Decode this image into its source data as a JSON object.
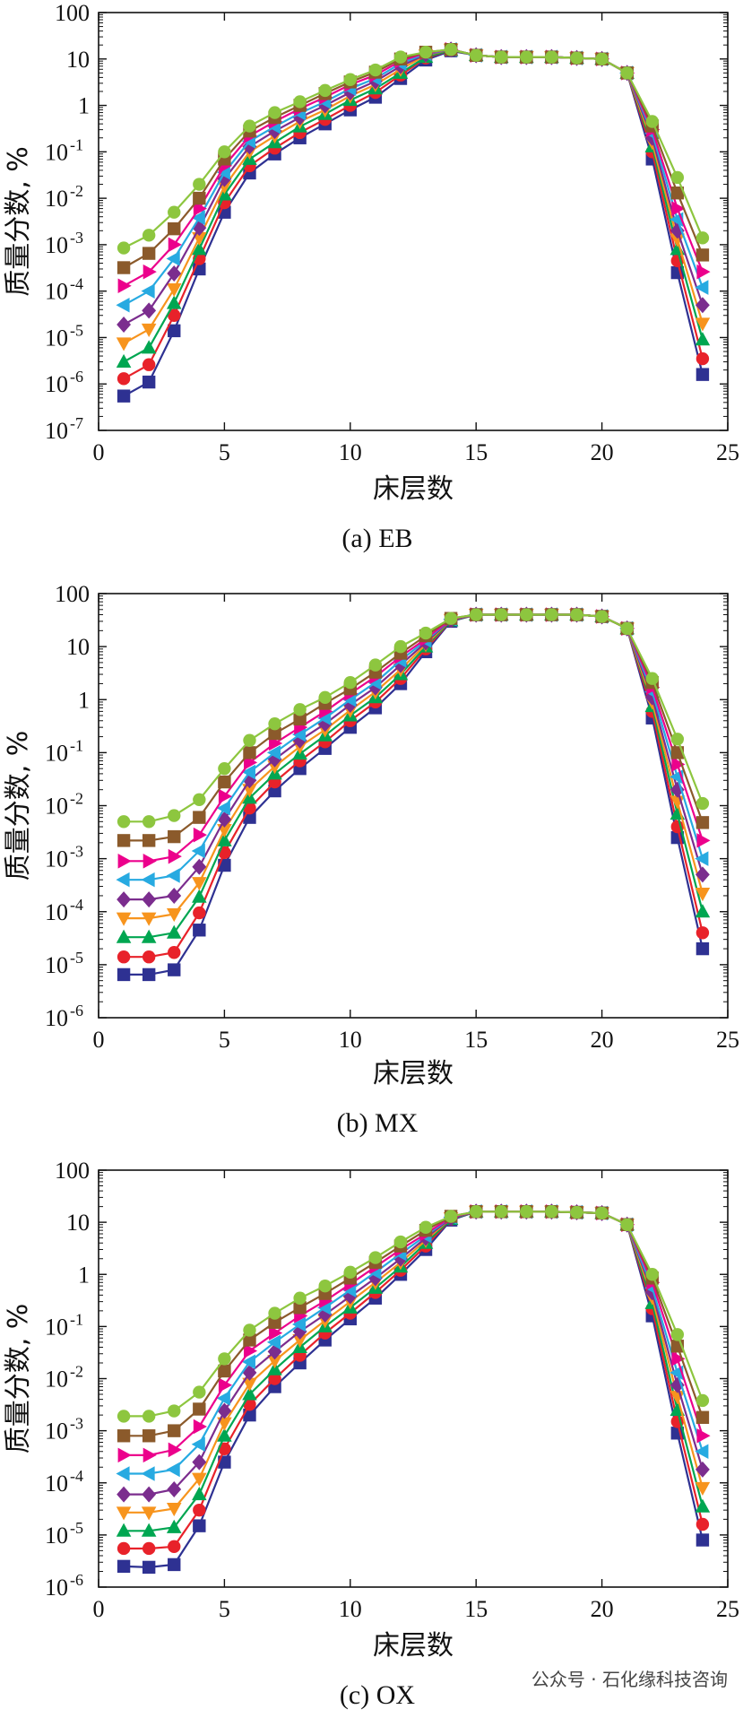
{
  "chart_data": [
    {
      "type": "line",
      "caption": "(a) EB",
      "xlabel": "床层数",
      "ylabel": "质量分数, %",
      "xlim": [
        0,
        25
      ],
      "xticks": [
        0,
        5,
        10,
        15,
        20,
        25
      ],
      "yscale": "log",
      "ylim_exp": [
        -7,
        2
      ],
      "yticks": [
        {
          "exp": -7,
          "label": "10",
          "sup": "-7"
        },
        {
          "exp": -6,
          "label": "10",
          "sup": "-6"
        },
        {
          "exp": -5,
          "label": "10",
          "sup": "-5"
        },
        {
          "exp": -4,
          "label": "10",
          "sup": "-4"
        },
        {
          "exp": -3,
          "label": "10",
          "sup": "-3"
        },
        {
          "exp": -2,
          "label": "10",
          "sup": "-2"
        },
        {
          "exp": -1,
          "label": "10",
          "sup": "-1"
        },
        {
          "exp": 0,
          "label": "1",
          "sup": ""
        },
        {
          "exp": 1,
          "label": "10",
          "sup": ""
        },
        {
          "exp": 2,
          "label": "100",
          "sup": ""
        }
      ],
      "x": [
        1,
        2,
        3,
        4,
        5,
        6,
        7,
        8,
        9,
        10,
        11,
        12,
        13,
        14,
        15,
        16,
        17,
        18,
        19,
        20,
        21,
        22,
        23,
        24
      ],
      "series": [
        {
          "color": "#2e3192",
          "marker": "square",
          "values": [
            5.5e-07,
            1.1e-06,
            1.4e-05,
            0.0003,
            0.005,
            0.035,
            0.09,
            0.2,
            0.4,
            0.8,
            1.5,
            3.8,
            9.5,
            15,
            12,
            11,
            11,
            11,
            10.5,
            10,
            5,
            0.07,
            0.00025,
            1.6e-06
          ]
        },
        {
          "color": "#e8222a",
          "marker": "circle",
          "values": [
            1.3e-06,
            2.6e-06,
            3e-05,
            0.0005,
            0.008,
            0.05,
            0.12,
            0.26,
            0.5,
            1,
            1.9,
            4.5,
            10.5,
            15.5,
            12,
            11,
            11,
            11,
            10.5,
            10,
            5,
            0.1,
            0.00045,
            3.5e-06
          ]
        },
        {
          "color": "#00a651",
          "marker": "triangle-up",
          "values": [
            3e-06,
            6e-06,
            5.5e-05,
            0.0008,
            0.012,
            0.07,
            0.16,
            0.35,
            0.65,
            1.3,
            2.3,
            5,
            11,
            15.5,
            12,
            11,
            11,
            11,
            10.5,
            10,
            5,
            0.13,
            0.0008,
            9e-06
          ]
        },
        {
          "color": "#f7941d",
          "marker": "triangle-down",
          "values": [
            7.5e-06,
            1.5e-05,
            0.00011,
            0.0014,
            0.018,
            0.1,
            0.22,
            0.45,
            0.8,
            1.6,
            2.8,
            6,
            12,
            16,
            12,
            11,
            11,
            11,
            10.5,
            10,
            5,
            0.16,
            0.0013,
            2e-05
          ]
        },
        {
          "color": "#7b2d8e",
          "marker": "diamond",
          "values": [
            1.9e-05,
            3.8e-05,
            0.00024,
            0.0023,
            0.026,
            0.13,
            0.28,
            0.55,
            1,
            1.9,
            3.3,
            7,
            12.5,
            16,
            12,
            11,
            11,
            11,
            10.5,
            10,
            5,
            0.2,
            0.002,
            5e-05
          ]
        },
        {
          "color": "#27aae1",
          "marker": "triangle-left",
          "values": [
            5e-05,
            0.0001,
            0.0005,
            0.0038,
            0.036,
            0.17,
            0.35,
            0.68,
            1.2,
            2.3,
            3.8,
            8,
            13,
            16,
            12,
            11,
            11,
            11,
            10.5,
            10,
            5,
            0.25,
            0.0035,
            0.00012
          ]
        },
        {
          "color": "#ec008c",
          "marker": "triangle-right",
          "values": [
            0.00013,
            0.00026,
            0.001,
            0.006,
            0.05,
            0.22,
            0.45,
            0.85,
            1.5,
            2.8,
            4.5,
            9,
            13.5,
            16,
            12,
            11,
            11,
            11,
            10.5,
            10,
            5,
            0.3,
            0.006,
            0.00026
          ]
        },
        {
          "color": "#8b5a2b",
          "marker": "square",
          "values": [
            0.00032,
            0.00065,
            0.0022,
            0.01,
            0.07,
            0.28,
            0.55,
            1,
            1.8,
            3.2,
            5.2,
            10,
            14,
            16,
            12,
            11,
            11,
            11,
            10.5,
            10,
            5,
            0.36,
            0.013,
            0.0006
          ]
        },
        {
          "color": "#8dc63f",
          "marker": "circle",
          "values": [
            0.00085,
            0.0016,
            0.005,
            0.02,
            0.1,
            0.36,
            0.7,
            1.2,
            2.1,
            3.6,
            5.8,
            11,
            14,
            16,
            12,
            11,
            11,
            11,
            10.5,
            10,
            5,
            0.45,
            0.028,
            0.0014
          ]
        }
      ]
    },
    {
      "type": "line",
      "caption": "(b) MX",
      "xlabel": "床层数",
      "ylabel": "质量分数, %",
      "xlim": [
        0,
        25
      ],
      "xticks": [
        0,
        5,
        10,
        15,
        20,
        25
      ],
      "yscale": "log",
      "ylim_exp": [
        -6,
        2
      ],
      "yticks": [
        {
          "exp": -6,
          "label": "10",
          "sup": "-6"
        },
        {
          "exp": -5,
          "label": "10",
          "sup": "-5"
        },
        {
          "exp": -4,
          "label": "10",
          "sup": "-4"
        },
        {
          "exp": -3,
          "label": "10",
          "sup": "-3"
        },
        {
          "exp": -2,
          "label": "10",
          "sup": "-2"
        },
        {
          "exp": -1,
          "label": "10",
          "sup": "-1"
        },
        {
          "exp": 0,
          "label": "1",
          "sup": ""
        },
        {
          "exp": 1,
          "label": "10",
          "sup": ""
        },
        {
          "exp": 2,
          "label": "100",
          "sup": ""
        }
      ],
      "x": [
        1,
        2,
        3,
        4,
        5,
        6,
        7,
        8,
        9,
        10,
        11,
        12,
        13,
        14,
        15,
        16,
        17,
        18,
        19,
        20,
        21,
        22,
        23,
        24
      ],
      "series": [
        {
          "color": "#2e3192",
          "marker": "square",
          "values": [
            6.5e-06,
            6.5e-06,
            8e-06,
            4.5e-05,
            0.00075,
            0.006,
            0.019,
            0.05,
            0.12,
            0.3,
            0.7,
            2,
            8,
            30,
            40,
            40,
            40,
            40,
            40,
            37,
            22,
            0.45,
            0.0025,
            2e-05
          ]
        },
        {
          "color": "#e8222a",
          "marker": "circle",
          "values": [
            1.4e-05,
            1.4e-05,
            1.7e-05,
            9.5e-05,
            0.0013,
            0.009,
            0.028,
            0.07,
            0.16,
            0.4,
            0.9,
            2.5,
            9,
            31,
            40,
            40,
            40,
            40,
            40,
            37,
            22,
            0.6,
            0.004,
            4e-05
          ]
        },
        {
          "color": "#00a651",
          "marker": "triangle-up",
          "values": [
            3.3e-05,
            3.3e-05,
            4e-05,
            0.00019,
            0.0022,
            0.014,
            0.04,
            0.095,
            0.21,
            0.5,
            1.1,
            3,
            10,
            31,
            40,
            40,
            40,
            40,
            40,
            37,
            22,
            0.75,
            0.007,
            0.0001
          ]
        },
        {
          "color": "#f7941d",
          "marker": "triangle-down",
          "values": [
            7.5e-05,
            7.5e-05,
            9e-05,
            0.00035,
            0.0035,
            0.02,
            0.055,
            0.13,
            0.27,
            0.63,
            1.4,
            3.7,
            11,
            32,
            40,
            40,
            40,
            40,
            40,
            37,
            22,
            0.9,
            0.012,
            0.00022
          ]
        },
        {
          "color": "#7b2d8e",
          "marker": "diamond",
          "values": [
            0.00017,
            0.00017,
            0.0002,
            0.0007,
            0.0055,
            0.03,
            0.075,
            0.17,
            0.35,
            0.8,
            1.7,
            4.5,
            12,
            32,
            40,
            40,
            40,
            40,
            40,
            37,
            22,
            1.1,
            0.02,
            0.0005
          ]
        },
        {
          "color": "#27aae1",
          "marker": "triangle-left",
          "values": [
            0.0004,
            0.0004,
            0.00048,
            0.0014,
            0.009,
            0.043,
            0.1,
            0.22,
            0.45,
            1,
            2.1,
            5.5,
            13,
            33,
            40,
            40,
            40,
            40,
            40,
            37,
            22,
            1.4,
            0.035,
            0.001
          ]
        },
        {
          "color": "#ec008c",
          "marker": "triangle-right",
          "values": [
            0.0009,
            0.0009,
            0.0011,
            0.0028,
            0.015,
            0.065,
            0.15,
            0.3,
            0.6,
            1.3,
            2.7,
            6.5,
            14,
            33,
            40,
            40,
            40,
            40,
            40,
            37,
            22,
            1.7,
            0.06,
            0.0022
          ]
        },
        {
          "color": "#8b5a2b",
          "marker": "square",
          "values": [
            0.0022,
            0.0022,
            0.0026,
            0.006,
            0.028,
            0.1,
            0.23,
            0.43,
            0.85,
            1.6,
            3.3,
            7.5,
            16,
            34,
            40,
            40,
            40,
            40,
            40,
            37,
            22,
            2.1,
            0.1,
            0.0048
          ]
        },
        {
          "color": "#8dc63f",
          "marker": "circle",
          "values": [
            0.005,
            0.005,
            0.0065,
            0.013,
            0.05,
            0.17,
            0.35,
            0.65,
            1.1,
            2.1,
            4.5,
            10,
            18,
            34,
            40,
            40,
            40,
            40,
            40,
            37,
            22,
            2.5,
            0.18,
            0.011
          ]
        }
      ]
    },
    {
      "type": "line",
      "caption": "(c) OX",
      "xlabel": "床层数",
      "ylabel": "质量分数, %",
      "xlim": [
        0,
        25
      ],
      "xticks": [
        0,
        5,
        10,
        15,
        20,
        25
      ],
      "yscale": "log",
      "ylim_exp": [
        -6,
        2
      ],
      "yticks": [
        {
          "exp": -6,
          "label": "10",
          "sup": "-6"
        },
        {
          "exp": -5,
          "label": "10",
          "sup": "-5"
        },
        {
          "exp": -4,
          "label": "10",
          "sup": "-4"
        },
        {
          "exp": -3,
          "label": "10",
          "sup": "-3"
        },
        {
          "exp": -2,
          "label": "10",
          "sup": "-2"
        },
        {
          "exp": -1,
          "label": "10",
          "sup": "-1"
        },
        {
          "exp": 0,
          "label": "1",
          "sup": ""
        },
        {
          "exp": 1,
          "label": "10",
          "sup": ""
        },
        {
          "exp": 2,
          "label": "100",
          "sup": ""
        }
      ],
      "x": [
        1,
        2,
        3,
        4,
        5,
        6,
        7,
        8,
        9,
        10,
        11,
        12,
        13,
        14,
        15,
        16,
        17,
        18,
        19,
        20,
        21,
        22,
        23,
        24
      ],
      "series": [
        {
          "color": "#2e3192",
          "marker": "square",
          "values": [
            2.5e-06,
            2.4e-06,
            2.7e-06,
            1.5e-05,
            0.00025,
            0.002,
            0.007,
            0.02,
            0.055,
            0.14,
            0.35,
            1,
            3,
            11,
            16,
            16,
            16,
            16,
            15.5,
            15,
            9,
            0.16,
            0.0009,
            8e-06
          ]
        },
        {
          "color": "#e8222a",
          "marker": "circle",
          "values": [
            5.5e-06,
            5.5e-06,
            6e-06,
            3e-05,
            0.00045,
            0.0032,
            0.01,
            0.028,
            0.075,
            0.18,
            0.45,
            1.2,
            3.5,
            11.5,
            16,
            16,
            16,
            16,
            15.5,
            15,
            9,
            0.22,
            0.0015,
            1.6e-05
          ]
        },
        {
          "color": "#00a651",
          "marker": "triangle-up",
          "values": [
            1.2e-05,
            1.2e-05,
            1.4e-05,
            6e-05,
            0.0008,
            0.005,
            0.015,
            0.04,
            0.1,
            0.23,
            0.55,
            1.4,
            4,
            11.5,
            16,
            16,
            16,
            16,
            15.5,
            15,
            9,
            0.28,
            0.0025,
            3.5e-05
          ]
        },
        {
          "color": "#f7941d",
          "marker": "triangle-down",
          "values": [
            2.7e-05,
            2.7e-05,
            3.2e-05,
            0.00012,
            0.0014,
            0.008,
            0.022,
            0.055,
            0.13,
            0.3,
            0.7,
            1.7,
            4.5,
            12,
            16,
            16,
            16,
            16,
            15.5,
            15,
            9,
            0.36,
            0.0045,
            8e-05
          ]
        },
        {
          "color": "#7b2d8e",
          "marker": "diamond",
          "values": [
            6e-05,
            6e-05,
            7.5e-05,
            0.00025,
            0.0024,
            0.013,
            0.033,
            0.08,
            0.17,
            0.38,
            0.85,
            2,
            5,
            12,
            16,
            16,
            16,
            16,
            15.5,
            15,
            9,
            0.45,
            0.0075,
            0.00018
          ]
        },
        {
          "color": "#27aae1",
          "marker": "triangle-left",
          "values": [
            0.00015,
            0.00015,
            0.00018,
            0.00055,
            0.0042,
            0.021,
            0.05,
            0.11,
            0.23,
            0.5,
            1.1,
            2.5,
            5.5,
            12.5,
            16,
            16,
            16,
            16,
            15.5,
            15,
            9,
            0.55,
            0.013,
            0.0004
          ]
        },
        {
          "color": "#ec008c",
          "marker": "triangle-right",
          "values": [
            0.00034,
            0.00034,
            0.00043,
            0.0012,
            0.0075,
            0.034,
            0.075,
            0.16,
            0.31,
            0.65,
            1.4,
            3,
            6,
            12.5,
            16,
            16,
            16,
            16,
            15.5,
            15,
            9,
            0.7,
            0.024,
            0.0008
          ]
        },
        {
          "color": "#8b5a2b",
          "marker": "square",
          "values": [
            0.0008,
            0.0008,
            0.001,
            0.0026,
            0.014,
            0.055,
            0.12,
            0.23,
            0.43,
            0.85,
            1.7,
            3.5,
            7,
            13,
            16,
            16,
            16,
            16,
            15.5,
            15,
            9,
            0.85,
            0.042,
            0.0018
          ]
        },
        {
          "color": "#8dc63f",
          "marker": "circle",
          "values": [
            0.0019,
            0.0019,
            0.0024,
            0.0055,
            0.024,
            0.085,
            0.18,
            0.35,
            0.6,
            1.1,
            2.1,
            4.2,
            8,
            13,
            16,
            16,
            16,
            16,
            15.5,
            15,
            9,
            1,
            0.07,
            0.0038
          ]
        }
      ]
    }
  ],
  "watermark": "公众号 · 石化缘科技咨询"
}
